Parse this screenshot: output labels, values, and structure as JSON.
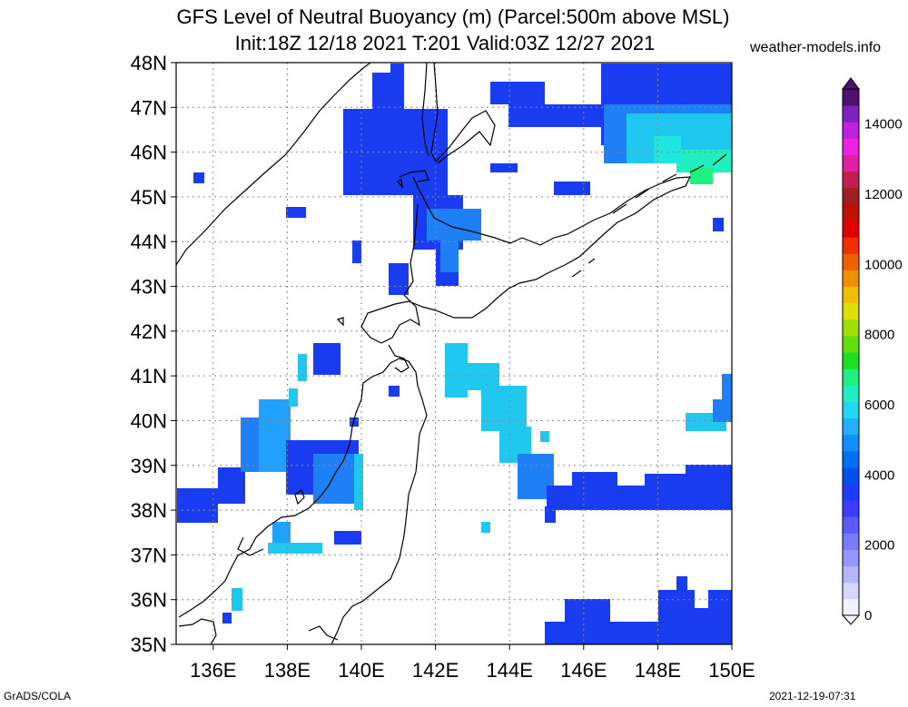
{
  "title_line1": "GFS Level of Neutral Buoyancy (m) (Parcel:500m above MSL)",
  "title_line2": "Init:18Z 12/18 2021 T:201 Valid:03Z 12/27 2021",
  "site": "weather-models.info",
  "footer_left": "GrADS/COLA",
  "footer_right": "2021-12-19-07:31",
  "map": {
    "lat_labels": [
      "48N",
      "47N",
      "46N",
      "45N",
      "44N",
      "43N",
      "42N",
      "41N",
      "40N",
      "39N",
      "38N",
      "37N",
      "36N",
      "35N"
    ],
    "lon_labels": [
      "136E",
      "138E",
      "140E",
      "142E",
      "144E",
      "146E",
      "148E",
      "150E"
    ],
    "lat_range": [
      35,
      48
    ],
    "lon_range": [
      135,
      150
    ]
  },
  "colorbar": {
    "labels": [
      "0",
      "2000",
      "4000",
      "6000",
      "8000",
      "10000",
      "12000",
      "14000"
    ],
    "colors": [
      "#f2f2ff",
      "#d6d6ff",
      "#b6b6ff",
      "#9696ff",
      "#7a7aff",
      "#5a5aff",
      "#3c3cff",
      "#1e3cff",
      "#0050f0",
      "#0070f8",
      "#1090ff",
      "#20b0ff",
      "#20d8f0",
      "#20f0c0",
      "#20f080",
      "#20e020",
      "#60e010",
      "#a0e000",
      "#e0e000",
      "#f0c000",
      "#f09000",
      "#f06000",
      "#f03000",
      "#e00000",
      "#c01000",
      "#a02020",
      "#c02050",
      "#e020a0",
      "#f020e0",
      "#c020e0",
      "#8020c0",
      "#501070"
    ]
  },
  "colors": {
    "lnb_dark": "#1a3cf0",
    "lnb_mid": "#1f7ff5",
    "lnb_light": "#20c8f0",
    "lnb_green": "#20f080"
  }
}
